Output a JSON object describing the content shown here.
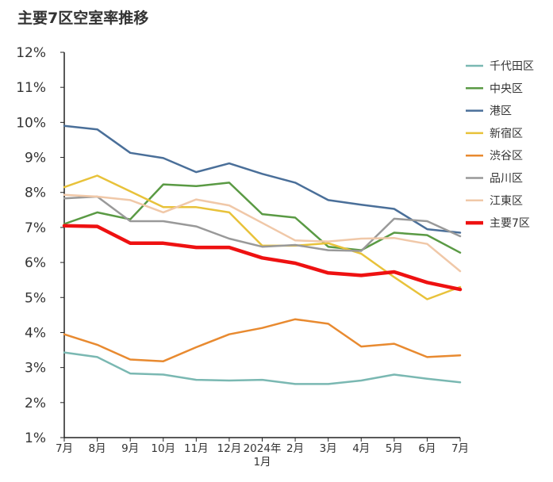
{
  "title": "主要7区空室率推移",
  "chart_data": {
    "type": "line",
    "title": "主要7区空室率推移",
    "xlabel": "",
    "ylabel": "",
    "ylim": [
      1,
      12
    ],
    "yticks": [
      "12%",
      "11%",
      "10%",
      "9%",
      "8%",
      "7%",
      "6%",
      "5%",
      "4%",
      "3%",
      "2%",
      "1%"
    ],
    "categories": [
      "7月",
      "8月",
      "9月",
      "10月",
      "11月",
      "12月",
      "2024年\n1月",
      "2月",
      "3月",
      "4月",
      "5月",
      "6月",
      "7月"
    ],
    "legend_position": "right",
    "series": [
      {
        "name": "千代田区",
        "color": "#7ab8b2",
        "values": [
          3.43,
          3.3,
          2.83,
          2.8,
          2.65,
          2.63,
          2.65,
          2.53,
          2.53,
          2.63,
          2.8,
          2.68,
          2.58
        ]
      },
      {
        "name": "中央区",
        "color": "#5a9a44",
        "values": [
          7.1,
          7.43,
          7.23,
          8.23,
          8.18,
          8.28,
          7.38,
          7.28,
          6.45,
          6.35,
          6.85,
          6.78,
          6.28
        ]
      },
      {
        "name": "港区",
        "color": "#4a6f99",
        "values": [
          9.9,
          9.8,
          9.13,
          8.98,
          8.58,
          8.83,
          8.53,
          8.28,
          7.78,
          7.65,
          7.53,
          6.95,
          6.85
        ]
      },
      {
        "name": "新宿区",
        "color": "#e8c23a",
        "values": [
          8.15,
          8.48,
          8.03,
          7.58,
          7.58,
          7.43,
          6.48,
          6.48,
          6.55,
          6.25,
          5.58,
          4.95,
          5.3
        ]
      },
      {
        "name": "渋谷区",
        "color": "#e88a30",
        "values": [
          3.95,
          3.65,
          3.23,
          3.18,
          3.58,
          3.95,
          4.13,
          4.38,
          4.25,
          3.6,
          3.68,
          3.3,
          3.35
        ]
      },
      {
        "name": "品川区",
        "color": "#999999",
        "values": [
          7.83,
          7.88,
          7.18,
          7.18,
          7.03,
          6.68,
          6.45,
          6.5,
          6.35,
          6.33,
          7.25,
          7.18,
          6.75
        ]
      },
      {
        "name": "江東区",
        "color": "#f0c8a8",
        "values": [
          7.93,
          7.88,
          7.78,
          7.43,
          7.8,
          7.63,
          7.13,
          6.63,
          6.6,
          6.68,
          6.7,
          6.53,
          5.75
        ]
      },
      {
        "name": "主要7区",
        "color": "#ee1111",
        "values": [
          7.05,
          7.03,
          6.55,
          6.55,
          6.43,
          6.43,
          6.13,
          5.98,
          5.7,
          5.63,
          5.73,
          5.43,
          5.23
        ]
      }
    ]
  }
}
